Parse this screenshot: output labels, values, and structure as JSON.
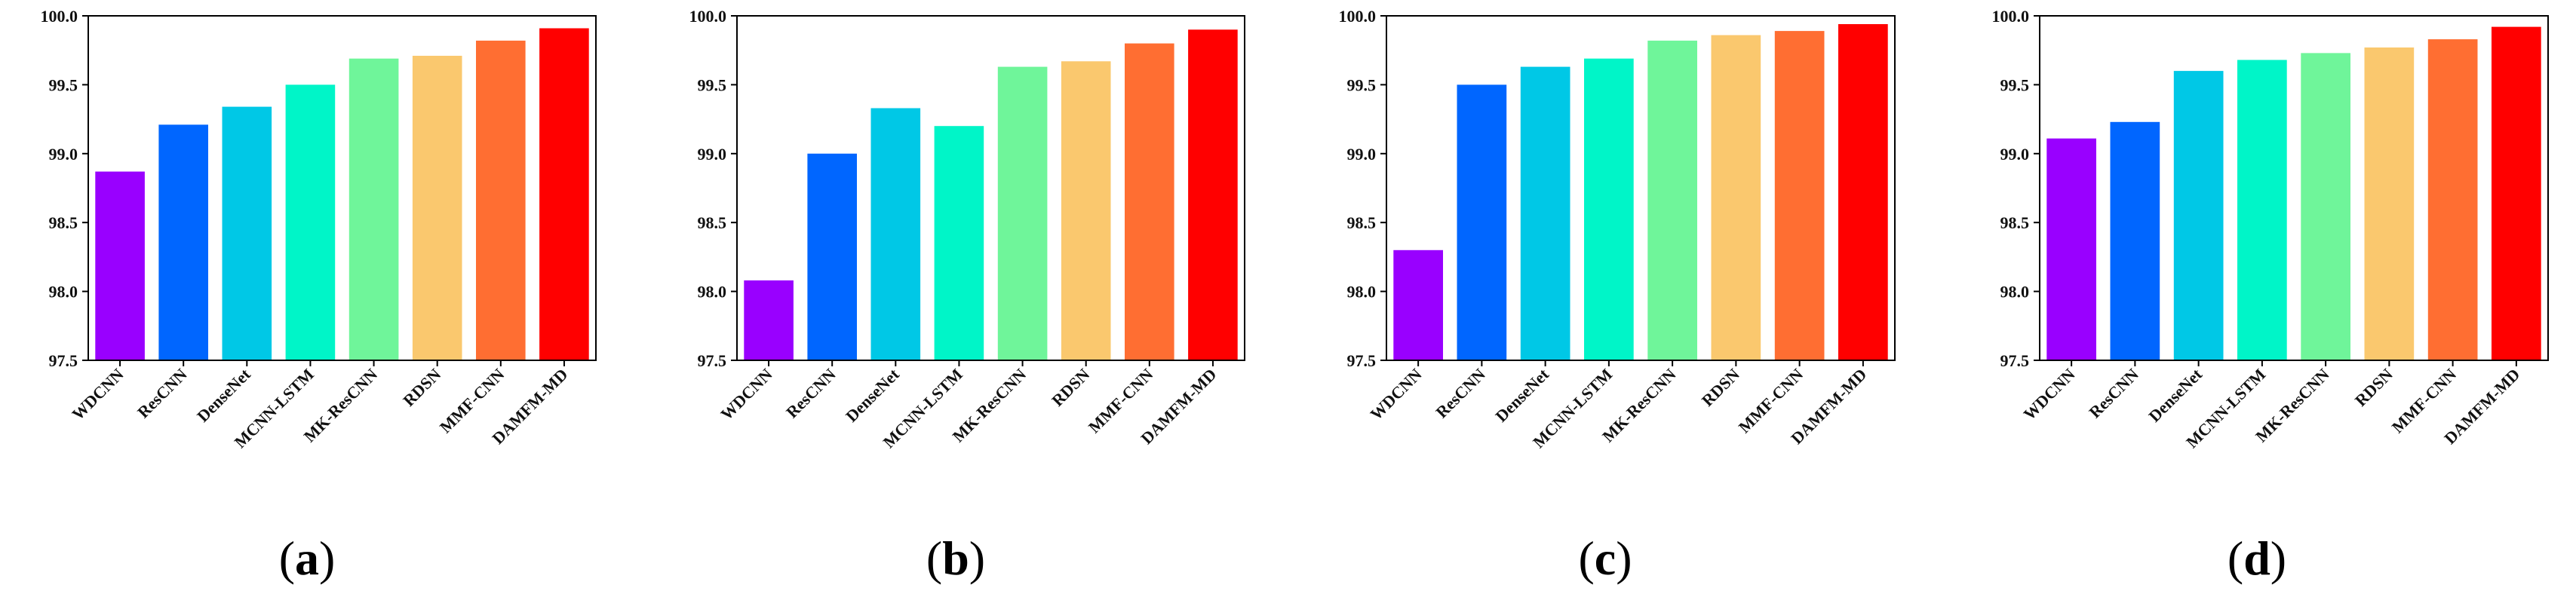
{
  "figure": {
    "categories": [
      "WDCNN",
      "ResCNN",
      "DenseNet",
      "MCNN-LSTM",
      "MK-ResCNN",
      "RDSN",
      "MMF-CNN",
      "DAMFM-MD"
    ],
    "colors": [
      "#9900ff",
      "#0066ff",
      "#00c8e6",
      "#00f5c8",
      "#6ff59a",
      "#fac86e",
      "#ff6e32",
      "#ff0000"
    ]
  },
  "chart_data": [
    {
      "type": "bar",
      "panel": "a",
      "categories": [
        "WDCNN",
        "ResCNN",
        "DenseNet",
        "MCNN-LSTM",
        "MK-ResCNN",
        "RDSN",
        "MMF-CNN",
        "DAMFM-MD"
      ],
      "values": [
        98.87,
        99.21,
        99.34,
        99.5,
        99.69,
        99.71,
        99.82,
        99.91
      ],
      "ylim": [
        97.5,
        100.0
      ],
      "yticks": [
        "97.5",
        "98.0",
        "98.5",
        "99.0",
        "99.5",
        "100.0"
      ],
      "title": "",
      "xlabel": "",
      "ylabel": "",
      "label_open": "(",
      "label_letter": "a",
      "label_close": ")"
    },
    {
      "type": "bar",
      "panel": "b",
      "categories": [
        "WDCNN",
        "ResCNN",
        "DenseNet",
        "MCNN-LSTM",
        "MK-ResCNN",
        "RDSN",
        "MMF-CNN",
        "DAMFM-MD"
      ],
      "values": [
        98.08,
        99.0,
        99.33,
        99.2,
        99.63,
        99.67,
        99.8,
        99.9
      ],
      "ylim": [
        97.5,
        100.0
      ],
      "yticks": [
        "97.5",
        "98.0",
        "98.5",
        "99.0",
        "99.5",
        "100.0"
      ],
      "title": "",
      "xlabel": "",
      "ylabel": "",
      "label_open": "(",
      "label_letter": "b",
      "label_close": ")"
    },
    {
      "type": "bar",
      "panel": "c",
      "categories": [
        "WDCNN",
        "ResCNN",
        "DenseNet",
        "MCNN-LSTM",
        "MK-ResCNN",
        "RDSN",
        "MMF-CNN",
        "DAMFM-MD"
      ],
      "values": [
        98.3,
        99.5,
        99.63,
        99.69,
        99.82,
        99.86,
        99.89,
        99.94
      ],
      "ylim": [
        97.5,
        100.0
      ],
      "yticks": [
        "97.5",
        "98.0",
        "98.5",
        "99.0",
        "99.5",
        "100.0"
      ],
      "title": "",
      "xlabel": "",
      "ylabel": "",
      "label_open": "(",
      "label_letter": "c",
      "label_close": ")"
    },
    {
      "type": "bar",
      "panel": "d",
      "categories": [
        "WDCNN",
        "ResCNN",
        "DenseNet",
        "MCNN-LSTM",
        "MK-ResCNN",
        "RDSN",
        "MMF-CNN",
        "DAMFM-MD"
      ],
      "values": [
        99.11,
        99.23,
        99.6,
        99.68,
        99.73,
        99.77,
        99.83,
        99.92
      ],
      "ylim": [
        97.5,
        100.0
      ],
      "yticks": [
        "97.5",
        "98.0",
        "98.5",
        "99.0",
        "99.5",
        "100.0"
      ],
      "title": "",
      "xlabel": "",
      "ylabel": "",
      "label_open": "(",
      "label_letter": "d",
      "label_close": ")"
    }
  ]
}
